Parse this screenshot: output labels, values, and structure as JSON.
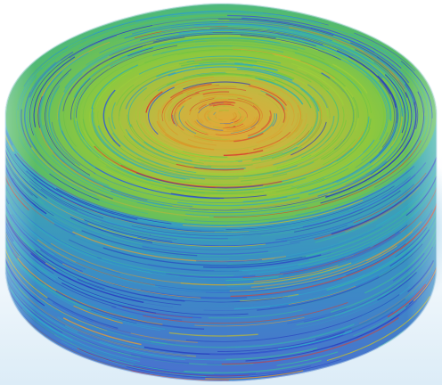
{
  "image": {
    "subject": "streamline-cylinder",
    "palette": {
      "core_warm": "#e0a030",
      "mid_green": "#7cc83c",
      "teal": "#3cb4a0",
      "cyan": "#30a8c8",
      "deep_blue": "#2840c0",
      "accent_red": "#d84030"
    }
  }
}
